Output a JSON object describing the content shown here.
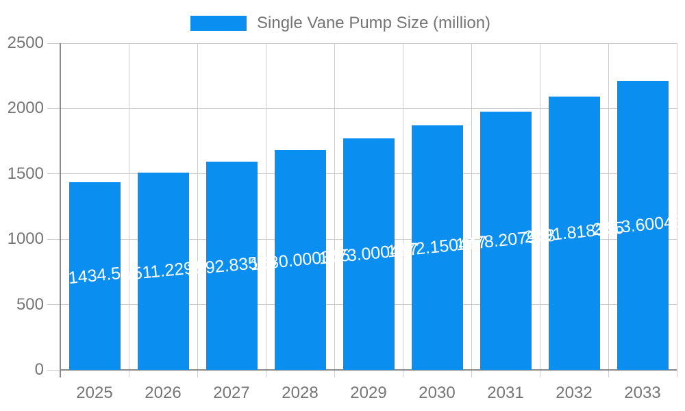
{
  "legend": {
    "label": "Single Vane Pump Size (million)"
  },
  "chart_data": {
    "type": "bar",
    "title": "Single Vane Pump Size (million)",
    "categories": [
      "2025",
      "2026",
      "2027",
      "2028",
      "2029",
      "2030",
      "2031",
      "2032",
      "2033"
    ],
    "values": [
      1434.5,
      1511.2295,
      1592.83525,
      1680.000375,
      1773.000447,
      1872.150447,
      1978.207948,
      2091.818345,
      2213.600455
    ],
    "bar_labels": [
      "1434.5",
      "1511.2295",
      "1592.83525",
      "1680.000375",
      "1773.000447",
      "1872.150447",
      "1978.207948",
      "2091.818345",
      "2213.600455"
    ],
    "xlabel": "",
    "ylabel": "",
    "ylim": [
      0,
      2500
    ],
    "y_ticks": [
      0,
      500,
      1000,
      1500,
      2000,
      2500
    ],
    "grid": true,
    "legend_position": "top",
    "colors": {
      "bar": "#0A8FF0",
      "grid": "#cccccc",
      "axis": "#8a8a8a",
      "text": "#757575",
      "data_label": "#ffffff"
    }
  }
}
